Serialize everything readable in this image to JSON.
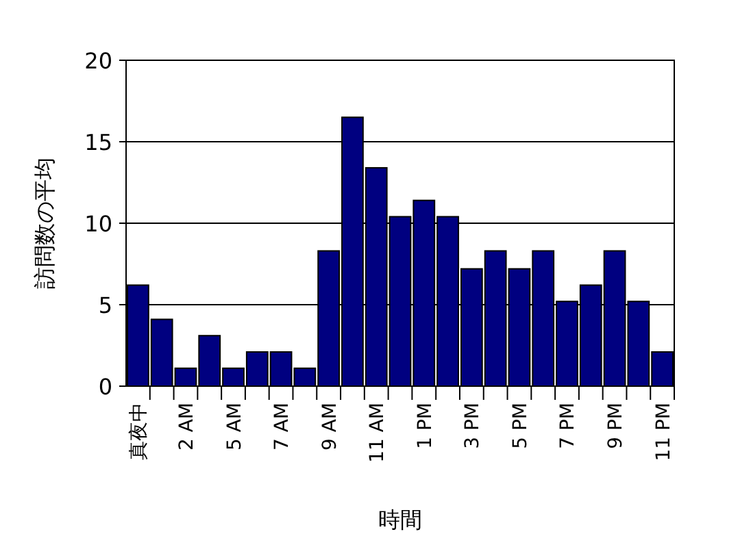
{
  "chart_data": {
    "type": "bar",
    "xlabel": "時間",
    "ylabel": "訪問数の平均",
    "categories": [
      "真夜中",
      null,
      "2 AM",
      null,
      "5 AM",
      null,
      "7 AM",
      null,
      "9 AM",
      null,
      "11 AM",
      null,
      "1 PM",
      null,
      "3 PM",
      null,
      "5 PM",
      null,
      "7 PM",
      null,
      "9 PM",
      null,
      "11 PM"
    ],
    "values": [
      6.2,
      4.1,
      1.1,
      3.1,
      1.1,
      2.1,
      2.1,
      1.1,
      8.3,
      16.5,
      13.4,
      10.4,
      11.4,
      10.4,
      7.2,
      8.3,
      7.2,
      8.3,
      5.2,
      6.2,
      8.3,
      5.2,
      2.1
    ],
    "color": "#000080",
    "ylim": [
      0,
      20
    ],
    "yticks": [
      0,
      5,
      10,
      15,
      20
    ],
    "grid": "y"
  }
}
